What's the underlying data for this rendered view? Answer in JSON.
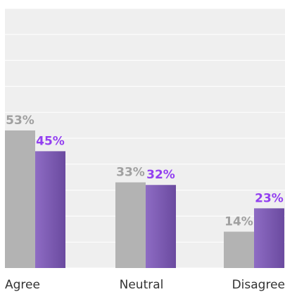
{
  "chart_data": {
    "type": "bar",
    "categories": [
      "Agree",
      "Neutral",
      "Disagree"
    ],
    "series": [
      {
        "color": "#b3b3b3",
        "values": [
          53,
          33,
          14
        ],
        "value_labels": [
          "53%",
          "33%",
          "14%"
        ]
      },
      {
        "color": "#7b55b5",
        "values": [
          45,
          32,
          23
        ],
        "value_labels": [
          "45%",
          "32%",
          "23%"
        ]
      }
    ],
    "ylim": [
      0,
      100
    ],
    "yticks": [
      0,
      10,
      20,
      30,
      40,
      50,
      60,
      70,
      80,
      90,
      100
    ],
    "grid": true
  }
}
